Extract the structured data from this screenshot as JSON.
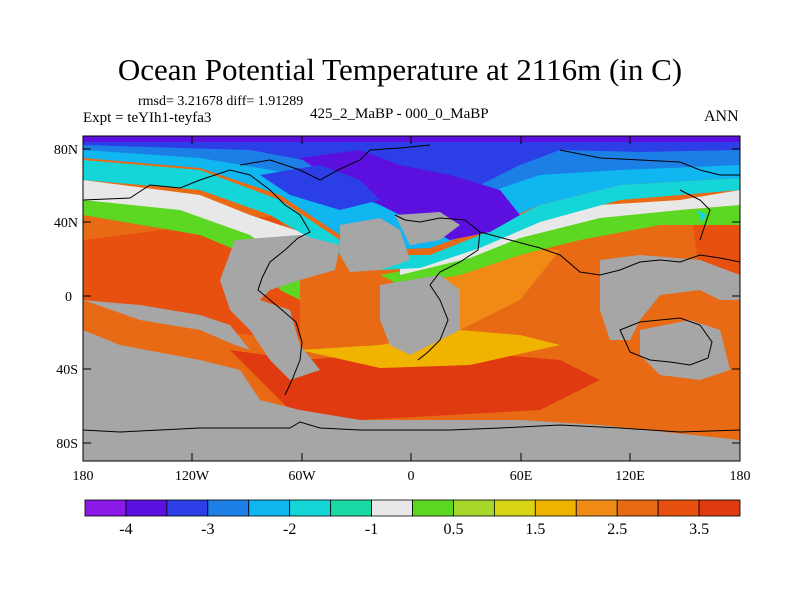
{
  "title": "Ocean Potential Temperature at 2116m (in C)",
  "stats": "rmsd= 3.21678 diff= 1.91289",
  "expt": "Expt = teYIh1-teyfa3",
  "center_label": "425_2_MaBP - 000_0_MaBP",
  "season": "ANN",
  "lat_labels": [
    "80N",
    "40N",
    "0",
    "40S",
    "80S"
  ],
  "lon_labels": [
    "180",
    "120W",
    "60W",
    "0",
    "60E",
    "120E",
    "180"
  ],
  "colorbar": {
    "colors": [
      "#8b1ae6",
      "#5b10e0",
      "#2c3fe6",
      "#1c7fe6",
      "#10b6f0",
      "#14d6d8",
      "#1ad9a4",
      "#e8e8e8",
      "#5cd822",
      "#a8d82c",
      "#d8d614",
      "#f0b400",
      "#f08a14",
      "#e86a14",
      "#e85010",
      "#e03a10"
    ],
    "tick_labels": [
      "-4",
      "-3",
      "-2",
      "-1",
      "0.5",
      "1.5",
      "2.5",
      "3.5"
    ]
  },
  "land_color": "#a6a6a6"
}
